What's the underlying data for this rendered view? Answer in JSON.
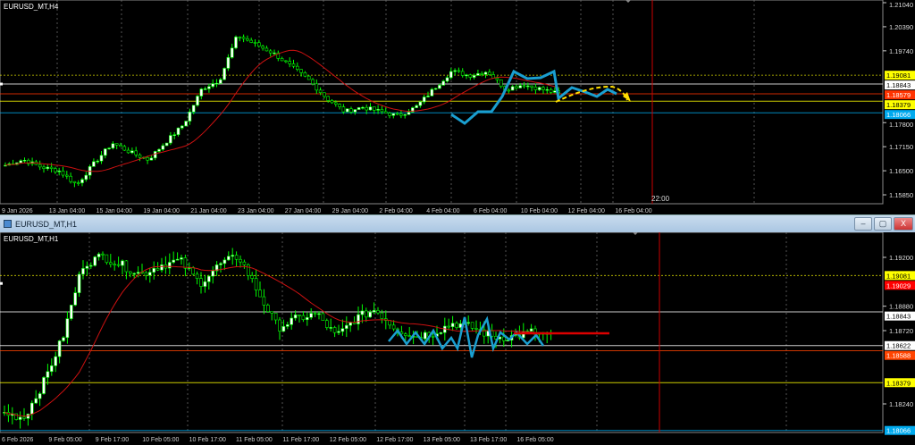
{
  "top_chart": {
    "symbol_label": "EURUSD_MT,H4",
    "price_ticks": [
      "1.21040",
      "1.20390",
      "1.19740",
      "1.17800",
      "1.17150",
      "1.16500",
      "1.15850"
    ],
    "price_tick_values": [
      1.2104,
      1.2039,
      1.1974,
      1.178,
      1.1715,
      1.165,
      1.1585
    ],
    "price_range": [
      1.1585,
      1.2104
    ],
    "levels": [
      {
        "label": "1.19081",
        "value": 1.19081,
        "color": "#ffff00",
        "style": "dotted"
      },
      {
        "label": "1.18843",
        "value": 1.18843,
        "color": "#ffffff",
        "style": "solid"
      },
      {
        "label": "1.18579",
        "value": 1.18579,
        "color": "#ff3300",
        "style": "solid"
      },
      {
        "label": "1.18379",
        "value": 1.18379,
        "color": "#ffff00",
        "style": "solid"
      },
      {
        "label": "1.18066",
        "value": 1.18066,
        "color": "#00aaee",
        "style": "solid"
      }
    ],
    "time_labels": [
      "9 Jan 2026",
      "13 Jan 04:00",
      "15 Jan 04:00",
      "19 Jan 04:00",
      "21 Jan 04:00",
      "23 Jan 04:00",
      "27 Jan 04:00",
      "29 Jan 04:00",
      "2 Feb 04:00",
      "4 Feb 04:00",
      "6 Feb 04:00",
      "10 Feb 04:00",
      "12 Feb 04:00",
      "16 Feb 04:00"
    ],
    "cursor_time": "22:00",
    "price_path": [
      1.1665,
      1.168,
      1.166,
      1.165,
      1.1612,
      1.1672,
      1.1725,
      1.17,
      1.168,
      1.1728,
      1.1776,
      1.1871,
      1.1895,
      1.2016,
      1.1992,
      1.1968,
      1.1932,
      1.1895,
      1.1846,
      1.181,
      1.1822,
      1.181,
      1.1798,
      1.1822,
      1.1871,
      1.1919,
      1.1907,
      1.1919,
      1.1871,
      1.1883,
      1.1871,
      1.1858
    ]
  },
  "bottom_chart": {
    "window_title": "EURUSD_MT,H1",
    "symbol_label": "EURUSD_MT,H1",
    "price_ticks": [
      "1.19200",
      "1.18880",
      "1.18720",
      "1.18240"
    ],
    "price_tick_values": [
      1.192,
      1.1888,
      1.1872,
      1.1824
    ],
    "levels": [
      {
        "label": "1.19081",
        "value": 1.19081,
        "color": "#ffff00",
        "style": "dotted"
      },
      {
        "label": "1.19029",
        "value": 1.19029,
        "color": "#ff0000",
        "style": "none"
      },
      {
        "label": "1.18843",
        "value": 1.18843,
        "color": "#ffffff",
        "style": "solid"
      },
      {
        "label": "1.18622",
        "value": 1.18622,
        "color": "#ffffff",
        "style": "solid"
      },
      {
        "label": "1.18588",
        "value": 1.18588,
        "color": "#ff4400",
        "style": "solid"
      },
      {
        "label": "1.18379",
        "value": 1.18379,
        "color": "#ffff00",
        "style": "solid"
      },
      {
        "label": "1.18066",
        "value": 1.18066,
        "color": "#00aaee",
        "style": "solid"
      }
    ],
    "time_labels": [
      "6 Feb 2026",
      "9 Feb 05:00",
      "9 Feb 17:00",
      "10 Feb 05:00",
      "10 Feb 17:00",
      "11 Feb 05:00",
      "11 Feb 17:00",
      "12 Feb 05:00",
      "12 Feb 17:00",
      "13 Feb 05:00",
      "13 Feb 17:00",
      "16 Feb 05:00"
    ],
    "price_path": [
      1.1818,
      1.1815,
      1.1838,
      1.1868,
      1.1915,
      1.1921,
      1.1915,
      1.1909,
      1.1915,
      1.1918,
      1.1903,
      1.1915,
      1.1921,
      1.1897,
      1.1874,
      1.188,
      1.1883,
      1.1868,
      1.188,
      1.1886,
      1.1874,
      1.1868,
      1.1871,
      1.1877,
      1.1874,
      1.1868,
      1.1868,
      1.1871,
      1.1868
    ]
  },
  "window_buttons": {
    "minimize": "‒",
    "maximize": "▢",
    "close": "X"
  },
  "colors": {
    "bull": "#ffffff",
    "bear": "#00ff00",
    "ma": "#cc1111",
    "zigzag": "#1a9fd0",
    "forecast": "#ffdd00"
  }
}
